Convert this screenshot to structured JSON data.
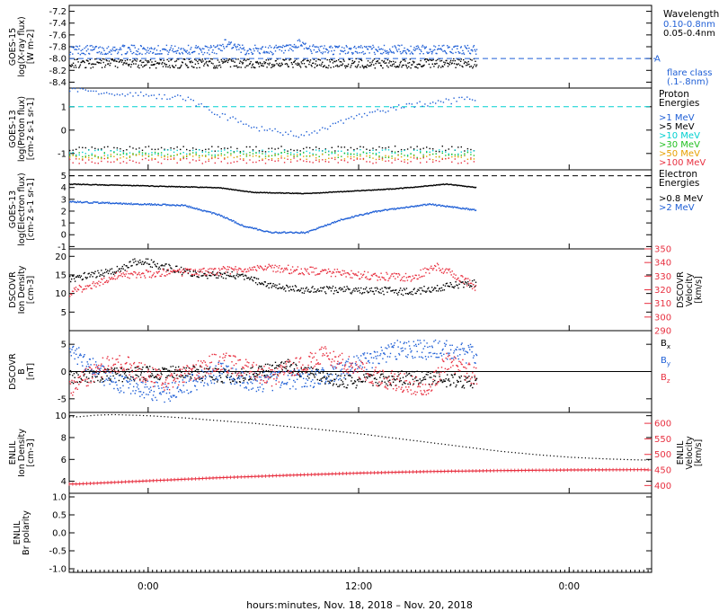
{
  "chart_data": [
    {
      "type": "scatter",
      "id": "goes15-xray",
      "ylabel": [
        "GOES-15",
        "log(X-ray flux)",
        "[W m-2]"
      ],
      "y_ticks": [
        "-7.2",
        "-7.4",
        "-7.6",
        "-7.8",
        "-8.0",
        "-8.2",
        "-8.4"
      ],
      "ylim": [
        -8.5,
        -7.1
      ],
      "legend_title": "Wavelength",
      "series": [
        {
          "name": "0.10-0.8nm",
          "color": "#1f5fd6",
          "level": -7.85,
          "scatter": 0.08,
          "bumps": [
            [
              4.5,
              0.12
            ],
            [
              8.7,
              0.1
            ]
          ]
        },
        {
          "name": "0.05-0.4nm",
          "color": "#000000",
          "level": -8.08,
          "scatter": 0.08,
          "bumps": []
        }
      ],
      "flare_level": {
        "label": "A",
        "value": -8.0,
        "color": "#1f5fd6"
      },
      "flare_note": [
        "flare class",
        "(.1-.8nm)"
      ]
    },
    {
      "type": "scatter",
      "id": "goes13-proton",
      "ylabel": [
        "GOES-13",
        "log(Proton flux)",
        "[cm-2 s-1 sr-1]"
      ],
      "y_ticks": [
        "1",
        "0",
        "-1"
      ],
      "ylim": [
        -1.7,
        1.8
      ],
      "legend_title": [
        "Proton",
        "Energies"
      ],
      "series": [
        {
          "name": ">1 MeV",
          "color": "#1f5fd6"
        },
        {
          "name": ">5 MeV",
          "color": "#000000"
        },
        {
          "name": ">10 MeV",
          "color": "#00d0d0"
        },
        {
          "name": ">30 MeV",
          "color": "#22c022"
        },
        {
          "name": ">50 MeV",
          "color": "#e6a000"
        },
        {
          "name": ">100 MeV",
          "color": "#e83040"
        }
      ],
      "threshold": {
        "value": 1.0,
        "color": "#00d0d0"
      }
    },
    {
      "type": "scatter",
      "id": "goes13-electron",
      "ylabel": [
        "GOES-13",
        "log(Electron flux)",
        "[cm-2 s-1 sr-1]"
      ],
      "y_ticks": [
        "5",
        "4",
        "3",
        "2",
        "1",
        "0",
        "-1"
      ],
      "ylim": [
        -1.2,
        5.5
      ],
      "legend_title": [
        "Electron",
        "Energies"
      ],
      "series": [
        {
          "name": ">0.8 MeV",
          "color": "#000000"
        },
        {
          "name": ">2 MeV",
          "color": "#1f5fd6"
        }
      ],
      "threshold": {
        "value": 5.0,
        "color": "#000000"
      }
    },
    {
      "type": "scatter",
      "id": "dscovr-density-velocity",
      "ylabel": [
        "DSCOVR",
        "Ion Density",
        "[cm-3]"
      ],
      "y_ticks": [
        "20",
        "15",
        "10",
        "5"
      ],
      "ylim": [
        0,
        22
      ],
      "y2label": [
        "DSCOVR",
        "Velocity",
        "[km/s]"
      ],
      "y2_ticks": [
        "350",
        "340",
        "330",
        "320",
        "310",
        "300",
        "290"
      ],
      "y2lim": [
        290,
        350
      ],
      "series": [
        {
          "name": "density",
          "color": "#000000"
        },
        {
          "name": "velocity",
          "color": "#e83040"
        }
      ]
    },
    {
      "type": "scatter",
      "id": "dscovr-b",
      "ylabel": [
        "DSCOVR",
        "B",
        "[nT]"
      ],
      "y_ticks": [
        "5",
        "0",
        "-5"
      ],
      "ylim": [
        -7.5,
        7.5
      ],
      "series": [
        {
          "name": "Bx",
          "label": "B",
          "sub": "x",
          "color": "#000000"
        },
        {
          "name": "By",
          "label": "B",
          "sub": "y",
          "color": "#1f5fd6"
        },
        {
          "name": "Bz",
          "label": "B",
          "sub": "z",
          "color": "#e83040"
        }
      ]
    },
    {
      "type": "line",
      "id": "enlil-density-velocity",
      "ylabel": [
        "ENLIL",
        "Ion Density",
        "[cm-3]"
      ],
      "y_ticks": [
        "10",
        "8",
        "6",
        "4"
      ],
      "ylim": [
        2.9,
        10.3
      ],
      "y2label": [
        "ENLIL",
        "Velocity",
        "[km/s]"
      ],
      "y2_ticks": [
        "600",
        "550",
        "500",
        "450",
        "400"
      ],
      "y2lim": [
        375,
        635
      ],
      "density": {
        "x": [
          -4,
          -3,
          -2,
          0,
          2,
          4,
          6,
          8,
          10,
          12,
          14,
          16,
          18,
          20,
          22,
          24,
          26,
          28
        ],
        "y": [
          9.9,
          10.05,
          10.1,
          10.0,
          9.8,
          9.55,
          9.3,
          9.0,
          8.7,
          8.35,
          7.95,
          7.55,
          7.15,
          6.75,
          6.45,
          6.2,
          6.05,
          5.95
        ],
        "color": "#000000"
      },
      "velocity": {
        "x": [
          -4,
          0,
          4,
          8,
          12,
          16,
          20,
          24,
          28
        ],
        "y": [
          405,
          415,
          425,
          433,
          440,
          445,
          448,
          450,
          451
        ],
        "color": "#e83040"
      }
    },
    {
      "type": "line",
      "id": "enlil-polarity",
      "ylabel": [
        "ENLIL",
        "Br polarity"
      ],
      "y_ticks": [
        "1.0",
        "0.5",
        "0.0",
        "-0.5",
        "-1.0"
      ],
      "ylim": [
        -1.1,
        1.1
      ]
    }
  ],
  "x_axis": {
    "xlim": [
      -4.5,
      28.7
    ],
    "data_end": 18.7,
    "ticks": [
      {
        "x": 0,
        "label": "0:00"
      },
      {
        "x": 12,
        "label": "12:00"
      },
      {
        "x": 24,
        "label": "0:00"
      }
    ],
    "title": "hours:minutes, Nov. 18, 2018 – Nov. 20, 2018"
  }
}
